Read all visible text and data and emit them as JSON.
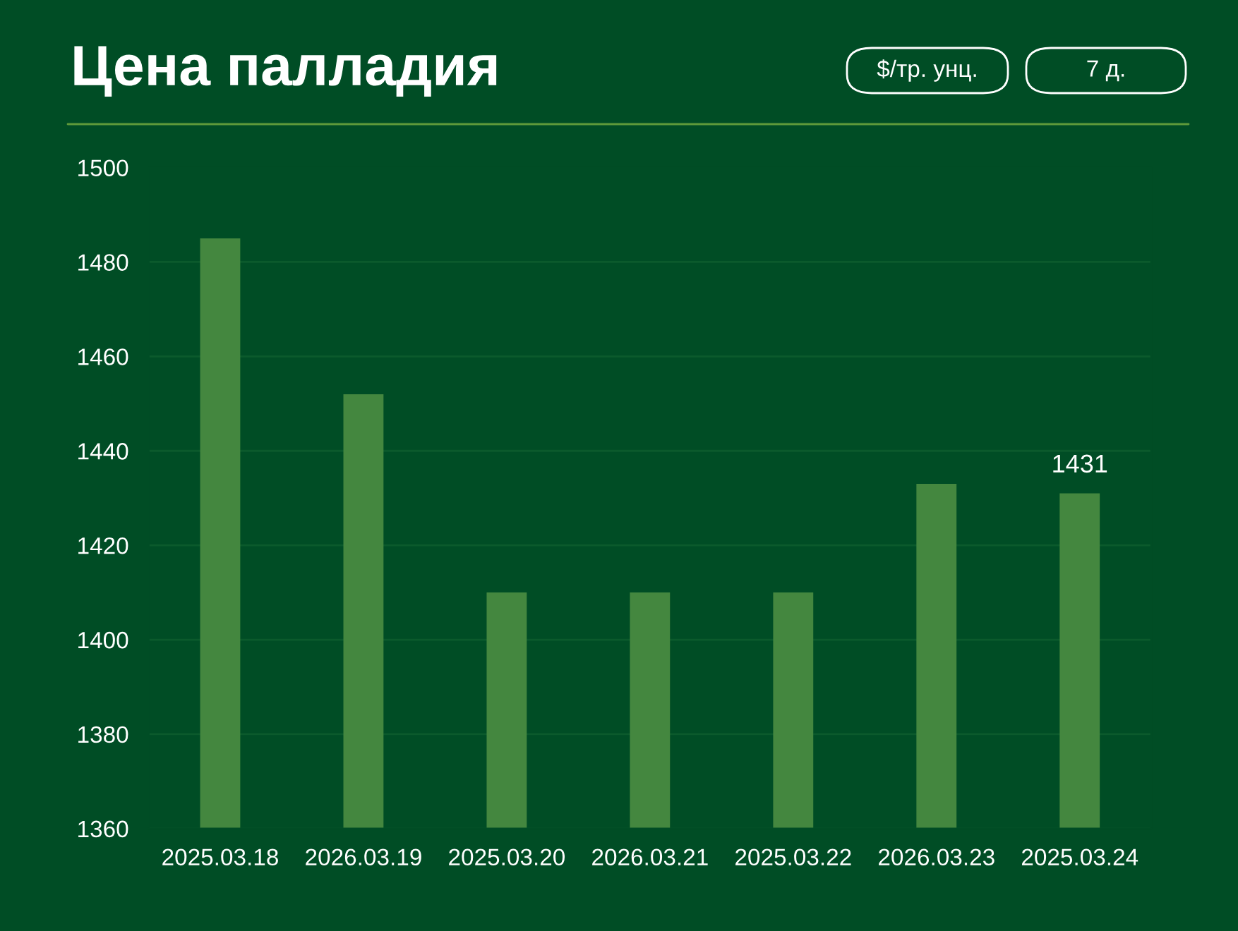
{
  "chart_data": {
    "type": "bar",
    "title": "Цена палладия",
    "categories": [
      "2025.03.18",
      "2026.03.19",
      "2025.03.20",
      "2026.03.21",
      "2025.03.22",
      "2026.03.23",
      "2025.03.24"
    ],
    "values": [
      1485,
      1452,
      1410,
      1410,
      1410,
      1433,
      1431
    ],
    "value_labels": [
      null,
      null,
      null,
      null,
      null,
      null,
      "1431"
    ],
    "color": "#44873f",
    "ylim": [
      1360,
      1500
    ],
    "yticks": [
      1360,
      1380,
      1400,
      1420,
      1440,
      1460,
      1480,
      1500
    ],
    "grid": "y",
    "annotations": [
      "$/тр. унц.",
      "7 д."
    ]
  }
}
